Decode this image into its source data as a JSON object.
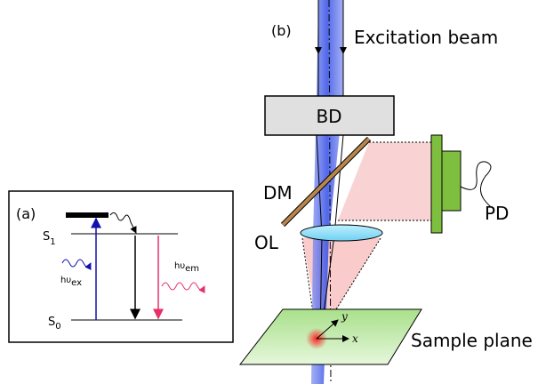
{
  "panel_a": {
    "label": "(a)",
    "levels": [
      {
        "base": "S",
        "sub": "1"
      },
      {
        "base": "S",
        "sub": "0"
      }
    ],
    "excitation": {
      "base": "hυ",
      "sub": "ex"
    },
    "emission": {
      "base": "hυ",
      "sub": "em"
    }
  },
  "panel_b": {
    "label": "(b)",
    "beam": "Excitation beam",
    "components": {
      "bd": "BD",
      "dm": "DM",
      "ol": "OL",
      "pd": "PD"
    },
    "sample": "Sample plane",
    "axes": {
      "x": "x",
      "y": "y"
    }
  }
}
